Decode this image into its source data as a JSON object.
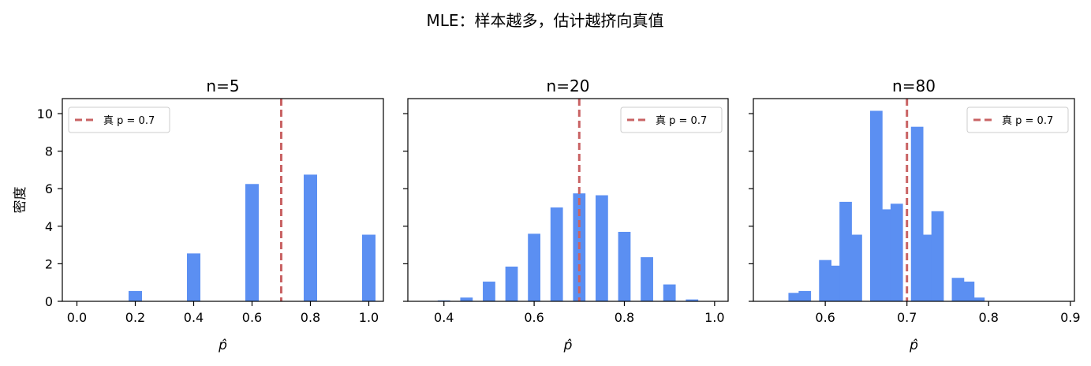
{
  "figure": {
    "title": "MLE：样本越多，估计越挤向真值"
  },
  "colors": {
    "bar": "#5b8ff2",
    "true_line": "#c96364",
    "axis": "#000000",
    "legend_border": "#cccccc"
  },
  "chart_data": [
    {
      "type": "bar",
      "title": "n=5",
      "xlabel": "p̂",
      "ylabel": "密度",
      "xlim": [
        -0.05,
        1.05
      ],
      "ylim": [
        0,
        10.8
      ],
      "xticks": [
        0.0,
        0.2,
        0.4,
        0.6,
        0.8,
        1.0
      ],
      "xtick_labels": [
        "0.0",
        "0.2",
        "0.4",
        "0.6",
        "0.8",
        "1.0"
      ],
      "yticks": [
        0,
        2,
        4,
        6,
        8,
        10
      ],
      "ytick_labels": [
        "0",
        "2",
        "4",
        "6",
        "8",
        "10"
      ],
      "bin_width": 0.05,
      "bars": [
        {
          "x": 0.2,
          "value": 0.55
        },
        {
          "x": 0.4,
          "value": 2.55
        },
        {
          "x": 0.6,
          "value": 6.25
        },
        {
          "x": 0.8,
          "value": 6.75
        },
        {
          "x": 1.0,
          "value": 3.55
        }
      ],
      "true_p": 0.7,
      "legend": {
        "label": "真 p = 0.7",
        "position": "upper left"
      }
    },
    {
      "type": "bar",
      "title": "n=20",
      "xlabel": "p̂",
      "ylabel": "",
      "xlim": [
        0.32,
        1.03
      ],
      "ylim": [
        0,
        10.8
      ],
      "xticks": [
        0.4,
        0.6,
        0.8,
        1.0
      ],
      "xtick_labels": [
        "0.4",
        "0.6",
        "0.8",
        "1.0"
      ],
      "yticks": [
        0,
        2,
        4,
        6,
        8,
        10
      ],
      "ytick_labels": [],
      "bin_width": 0.03,
      "bars": [
        {
          "x": 0.4,
          "value": 0.05
        },
        {
          "x": 0.45,
          "value": 0.2
        },
        {
          "x": 0.5,
          "value": 1.05
        },
        {
          "x": 0.55,
          "value": 1.85
        },
        {
          "x": 0.6,
          "value": 3.6
        },
        {
          "x": 0.65,
          "value": 5.0
        },
        {
          "x": 0.7,
          "value": 5.75
        },
        {
          "x": 0.75,
          "value": 5.65
        },
        {
          "x": 0.8,
          "value": 3.7
        },
        {
          "x": 0.85,
          "value": 2.35
        },
        {
          "x": 0.9,
          "value": 0.9
        },
        {
          "x": 0.95,
          "value": 0.1
        }
      ],
      "true_p": 0.7,
      "legend": {
        "label": "真 p = 0.7",
        "position": "upper right"
      }
    },
    {
      "type": "bar",
      "title": "n=80",
      "xlabel": "p̂",
      "ylabel": "",
      "xlim": [
        0.512,
        0.905
      ],
      "ylim": [
        0,
        10.8
      ],
      "xticks": [
        0.6,
        0.7,
        0.8,
        0.9
      ],
      "xtick_labels": [
        "0.6",
        "0.7",
        "0.8",
        "0.9"
      ],
      "yticks": [
        0,
        2,
        4,
        6,
        8,
        10
      ],
      "ytick_labels": [],
      "bin_width": 0.0165,
      "bars": [
        {
          "x": 0.5625,
          "value": 0.45
        },
        {
          "x": 0.575,
          "value": 0.55
        },
        {
          "x": 0.6,
          "value": 2.2
        },
        {
          "x": 0.6125,
          "value": 1.9
        },
        {
          "x": 0.625,
          "value": 5.3
        },
        {
          "x": 0.6375,
          "value": 3.55
        },
        {
          "x": 0.6625,
          "value": 10.15
        },
        {
          "x": 0.675,
          "value": 4.9
        },
        {
          "x": 0.6875,
          "value": 5.2
        },
        {
          "x": 0.7125,
          "value": 9.3
        },
        {
          "x": 0.725,
          "value": 3.55
        },
        {
          "x": 0.7375,
          "value": 4.8
        },
        {
          "x": 0.7625,
          "value": 1.25
        },
        {
          "x": 0.775,
          "value": 1.05
        },
        {
          "x": 0.7875,
          "value": 0.2
        }
      ],
      "true_p": 0.7,
      "legend": {
        "label": "真 p = 0.7",
        "position": "upper right"
      }
    }
  ]
}
